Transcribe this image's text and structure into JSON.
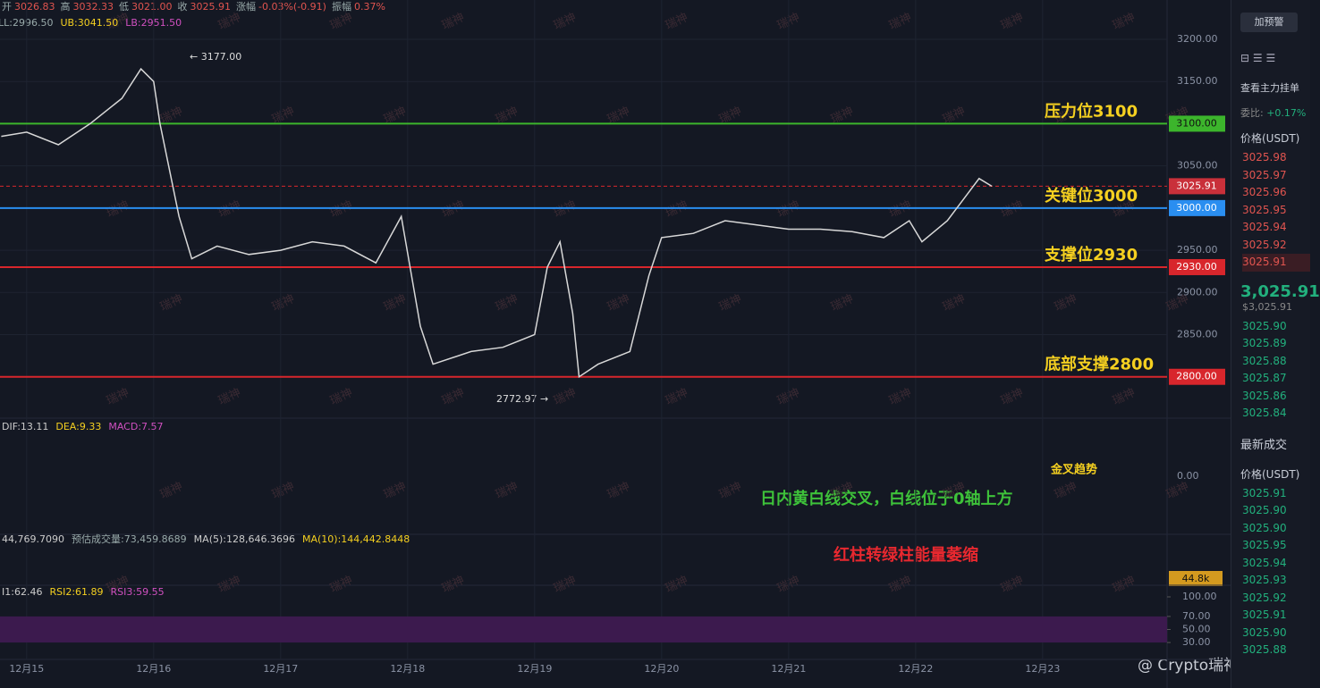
{
  "header": {
    "items": [
      [
        "开",
        "3026.83"
      ],
      [
        "高",
        "3032.33"
      ],
      [
        "低",
        "3021.00"
      ],
      [
        "收",
        "3025.91"
      ],
      [
        "涨幅",
        "-0.03%(-0.91)"
      ],
      [
        "振幅",
        "0.37%"
      ]
    ],
    "bands": [
      "LL:2996.50",
      "UB:3041.50",
      "LB:2951.50"
    ]
  },
  "chart_data": {
    "type": "line",
    "color": "#d8d8d8",
    "x": [
      -0.2,
      0,
      0.25,
      0.5,
      0.75,
      0.9,
      1.0,
      1.05,
      1.2,
      1.3,
      1.5,
      1.75,
      2.0,
      2.25,
      2.5,
      2.75,
      2.95,
      3.1,
      3.2,
      3.5,
      3.75,
      4.0,
      4.1,
      4.2,
      4.3,
      4.35,
      4.5,
      4.75,
      4.9,
      5.0,
      5.25,
      5.5,
      5.75,
      6.0,
      6.25,
      6.5,
      6.75,
      6.95,
      7.05,
      7.25,
      7.4,
      7.5,
      7.6
    ],
    "values": [
      3085,
      3090,
      3075,
      3100,
      3130,
      3165,
      3150,
      3100,
      2990,
      2940,
      2955,
      2945,
      2950,
      2960,
      2955,
      2935,
      2990,
      2860,
      2815,
      2830,
      2835,
      2850,
      2930,
      2960,
      2875,
      2800,
      2815,
      2830,
      2920,
      2965,
      2970,
      2985,
      2980,
      2975,
      2975,
      2972,
      2965,
      2985,
      2960,
      2985,
      3015,
      3035,
      3025.91
    ],
    "xlim": [
      -0.21,
      8.98
    ],
    "ylim": [
      2751,
      3246.6
    ],
    "xticks": [
      {
        "value": 0,
        "label": "12月15"
      },
      {
        "value": 1,
        "label": "12月16"
      },
      {
        "value": 2,
        "label": "12月17"
      },
      {
        "value": 3,
        "label": "12月18"
      },
      {
        "value": 4,
        "label": "12月19"
      },
      {
        "value": 5,
        "label": "12月20"
      },
      {
        "value": 6,
        "label": "12月21"
      },
      {
        "value": 7,
        "label": "12月22"
      },
      {
        "value": 8,
        "label": "12月23"
      }
    ],
    "yticks": [
      {
        "value": 3200,
        "label": "3200.00"
      },
      {
        "value": 3150,
        "label": "3150.00"
      },
      {
        "value": 3050,
        "label": "3050.00"
      },
      {
        "value": 2950,
        "label": "2950.00"
      },
      {
        "value": 2900,
        "label": "2900.00"
      },
      {
        "value": 2850,
        "label": "2850.00"
      }
    ],
    "levels": [
      {
        "value": 3100,
        "label": "压力位3100",
        "tag": "3100.00",
        "color": "#3cb52c"
      },
      {
        "value": 3000,
        "label": "关键位3000",
        "tag": "3000.00",
        "color": "#2a8ef0"
      },
      {
        "value": 2930,
        "label": "支撑位2930",
        "tag": "2930.00",
        "color": "#d8262c"
      },
      {
        "value": 2800,
        "label": "底部支撑2800",
        "tag": "2800.00",
        "color": "#d8262c"
      }
    ],
    "last_price": {
      "value": 3025.91,
      "label": "3025.91"
    },
    "high_label": "← 3177.00",
    "low_label": "2772.97 →"
  },
  "macd": {
    "labels": [
      "DIF:13.11",
      "DEA:9.33",
      "MACD:7.57"
    ],
    "zero": "0.00",
    "note1": "金叉趋势",
    "note2": "日内黄白线交叉，白线位于0轴上方"
  },
  "volume": {
    "labels": [
      "44,769.7090",
      "预估成交量:73,459.8689",
      "MA(5):128,646.3696",
      "MA(10):144,442.8448"
    ],
    "tag": "44.8k",
    "note": "红柱转绿柱能量萎缩"
  },
  "rsi": {
    "labels": [
      "I1:62.46",
      "RSI2:61.89",
      "RSI3:59.55"
    ],
    "ylim": [
      0,
      100
    ],
    "yticks": [
      {
        "value": 100,
        "label": "100.00"
      },
      {
        "value": 70,
        "label": "70.00"
      },
      {
        "value": 50,
        "label": "50.00"
      },
      {
        "value": 30,
        "label": "30.00"
      }
    ]
  },
  "watermark": "瑞神",
  "signature": "@ Crypto瑞神",
  "side": {
    "alert_button": "加预警",
    "book_title": "查看主力挂单",
    "ratio_label": "委比:",
    "ratio": "+0.17%",
    "price_header": "价格(USDT)",
    "asks": [
      "3025.98",
      "3025.97",
      "3025.96",
      "3025.95",
      "3025.94",
      "3025.92",
      "3025.91"
    ],
    "last": "3,025.91",
    "last_usd": "$3,025.91",
    "bids": [
      "3025.90",
      "3025.89",
      "3025.88",
      "3025.87",
      "3025.86",
      "3025.84"
    ],
    "trades_title": "最新成交",
    "trades_header": "价格(USDT)",
    "trades": [
      "3025.91",
      "3025.90",
      "3025.90",
      "3025.95",
      "3025.94",
      "3025.93",
      "3025.92",
      "3025.91",
      "3025.90",
      "3025.88"
    ]
  }
}
